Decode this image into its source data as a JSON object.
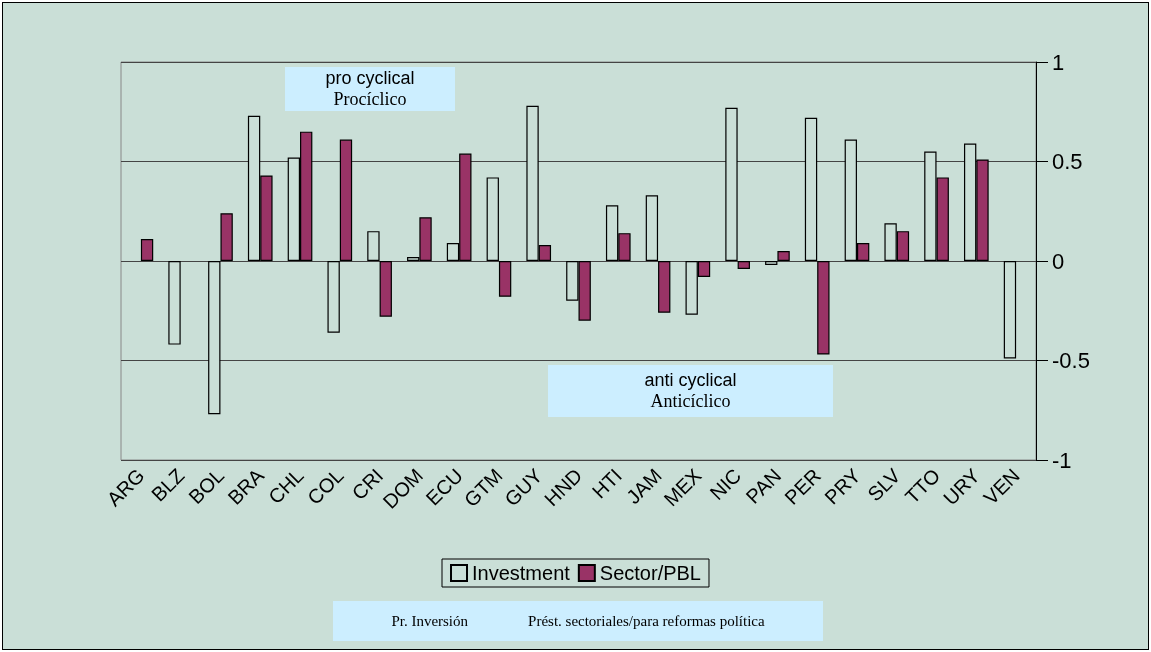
{
  "chart_data": {
    "type": "bar",
    "categories": [
      "ARG",
      "BLZ",
      "BOL",
      "BRA",
      "CHL",
      "COL",
      "CRI",
      "DOM",
      "ECU",
      "GTM",
      "GUY",
      "HND",
      "HTI",
      "JAM",
      "MEX",
      "NIC",
      "PAN",
      "PER",
      "PRY",
      "SLV",
      "TTO",
      "URY",
      "VEN"
    ],
    "series": [
      {
        "name": "Investment",
        "color": "#cadfd7",
        "values": [
          null,
          -0.42,
          -0.77,
          0.73,
          0.52,
          -0.36,
          0.15,
          0.02,
          0.09,
          0.42,
          0.78,
          -0.2,
          0.28,
          0.33,
          -0.27,
          0.77,
          -0.02,
          0.72,
          0.61,
          0.19,
          0.55,
          0.59,
          -0.49
        ]
      },
      {
        "name": "Sector/PBL",
        "color": "#993366",
        "values": [
          0.11,
          null,
          0.24,
          0.43,
          0.65,
          0.61,
          -0.28,
          0.22,
          0.54,
          -0.18,
          0.08,
          -0.3,
          0.14,
          -0.26,
          -0.08,
          -0.04,
          0.05,
          -0.47,
          0.09,
          0.15,
          0.42,
          0.51,
          null
        ]
      }
    ],
    "ylim": [
      -1,
      1
    ],
    "yticks": [
      -1,
      -0.5,
      0,
      0.5,
      1
    ],
    "grid": "y",
    "legend": "bottom",
    "annotations": [
      "pro cyclical",
      "Procíclico",
      "anti cyclical",
      "Anticíclico",
      "Pr. Inversión",
      "Prést. sectoriales/para reformas política"
    ]
  }
}
